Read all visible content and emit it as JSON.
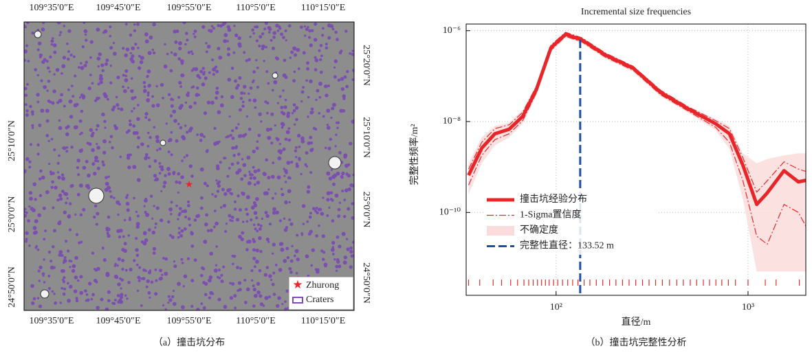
{
  "map": {
    "caption": "（a）撞击坑分布",
    "top_labels": [
      "109°35′0″E",
      "109°45′0″E",
      "109°55′0″E",
      "110°5′0″E",
      "110°15′0″E"
    ],
    "bottom_labels": [
      "109°35′0″E",
      "109°45′0″E",
      "109°55′0″E",
      "110°5′0″E",
      "110°15′0″E"
    ],
    "left_labels": [
      "25°10′0″N",
      "25°0′0″N",
      "24°50′0″N"
    ],
    "right_labels": [
      "25°20′0″N",
      "25°10′0″N",
      "25°0′0″N",
      "24°50′0″N"
    ],
    "legend": [
      "Zhurong",
      "Craters"
    ]
  },
  "chart_data": {
    "type": "line",
    "title": "Incremental size frequencies",
    "caption": "（b）撞击坑完整性分析",
    "xlabel": "直径/m",
    "ylabel": "完整性频率/m²",
    "xscale": "log",
    "yscale": "log",
    "grid": true,
    "legend": "lower left",
    "xlim": [
      34,
      2000
    ],
    "ylim": [
      1.5e-12,
      1.4e-06
    ],
    "xticks": [
      {
        "value": 100,
        "label": "10²"
      },
      {
        "value": 1000,
        "label": "10³"
      }
    ],
    "yticks": [
      {
        "value": 1e-10,
        "label": "10⁻¹⁰"
      },
      {
        "value": 1e-08,
        "label": "10⁻⁸"
      },
      {
        "value": 1e-06,
        "label": "10⁻⁶"
      }
    ],
    "x": [
      35,
      41,
      48,
      57,
      67,
      79,
      94,
      112,
      136,
      181,
      252,
      350,
      488,
      677,
      800,
      940,
      1110,
      1260,
      1540,
      1830,
      2000
    ],
    "series": [
      {
        "name": "撞击坑经验分布",
        "color": "#e8262a",
        "values": [
          6.6e-10,
          2.6e-09,
          5.4e-09,
          6.8e-09,
          1.3e-08,
          5.1e-08,
          4.2e-07,
          8.3e-07,
          6.3e-07,
          2.9e-07,
          1.5e-07,
          4.4e-08,
          1.9e-08,
          9e-09,
          5.4e-09,
          1.1e-09,
          1.5e-10,
          2.7e-10,
          8.3e-10,
          4.7e-10,
          5.1e-10
        ]
      },
      {
        "name": "1-Sigma置信度",
        "color": "#e8262a",
        "upper": [
          9e-10,
          3.5e-09,
          7e-09,
          8.5e-09,
          1.6e-08,
          6e-08,
          4.8e-07,
          9.2e-07,
          7e-07,
          3.2e-07,
          1.65e-07,
          4.9e-08,
          2.1e-08,
          1.05e-08,
          7e-09,
          1.6e-09,
          2.8e-10,
          5e-10,
          1.3e-09,
          9e-10,
          8e-10
        ],
        "lower": [
          4e-10,
          1.8e-09,
          4e-09,
          5.4e-09,
          1.05e-08,
          4.3e-08,
          3.7e-07,
          7.5e-07,
          5.7e-07,
          2.6e-07,
          1.35e-07,
          3.9e-08,
          1.7e-08,
          7.5e-09,
          3.5e-09,
          5e-10,
          3e-11,
          2e-11,
          1.5e-10,
          1e-10,
          5e-11
        ]
      },
      {
        "name": "不确定度",
        "color": "#fbdcdc",
        "upper": [
          1.2e-09,
          4.5e-09,
          8e-09,
          9.5e-09,
          1.8e-08,
          6.5e-08,
          5e-07,
          9.5e-07,
          7.3e-07,
          3.3e-07,
          1.7e-07,
          5.1e-08,
          2.2e-08,
          1.15e-08,
          8e-09,
          2e-09,
          1.2e-09,
          1.5e-09,
          1.8e-09,
          2e-09,
          2e-09
        ],
        "lower": [
          2.5e-10,
          1.2e-09,
          3e-09,
          4.5e-09,
          9e-09,
          3.9e-08,
          3.4e-07,
          7e-07,
          5.3e-07,
          2.4e-07,
          1.25e-07,
          3.6e-08,
          1.55e-08,
          6.5e-09,
          2.5e-09,
          2e-10,
          5e-12,
          5e-12,
          5e-12,
          5e-12,
          5e-12
        ]
      }
    ],
    "completeness": {
      "name": "完整性直径：133.52 m",
      "value": 133.52,
      "color": "#1f4e9c"
    },
    "rug": [
      35,
      40,
      47,
      52,
      58,
      63,
      68,
      72,
      76,
      80,
      84,
      88,
      92,
      97,
      102,
      108,
      115,
      122,
      130,
      140,
      150,
      162,
      175,
      190,
      205,
      222,
      240,
      260,
      282,
      305,
      330,
      358,
      390,
      425,
      460,
      500,
      540,
      585,
      630,
      680,
      730,
      790,
      860,
      1000,
      1230,
      1400,
      1850
    ]
  }
}
